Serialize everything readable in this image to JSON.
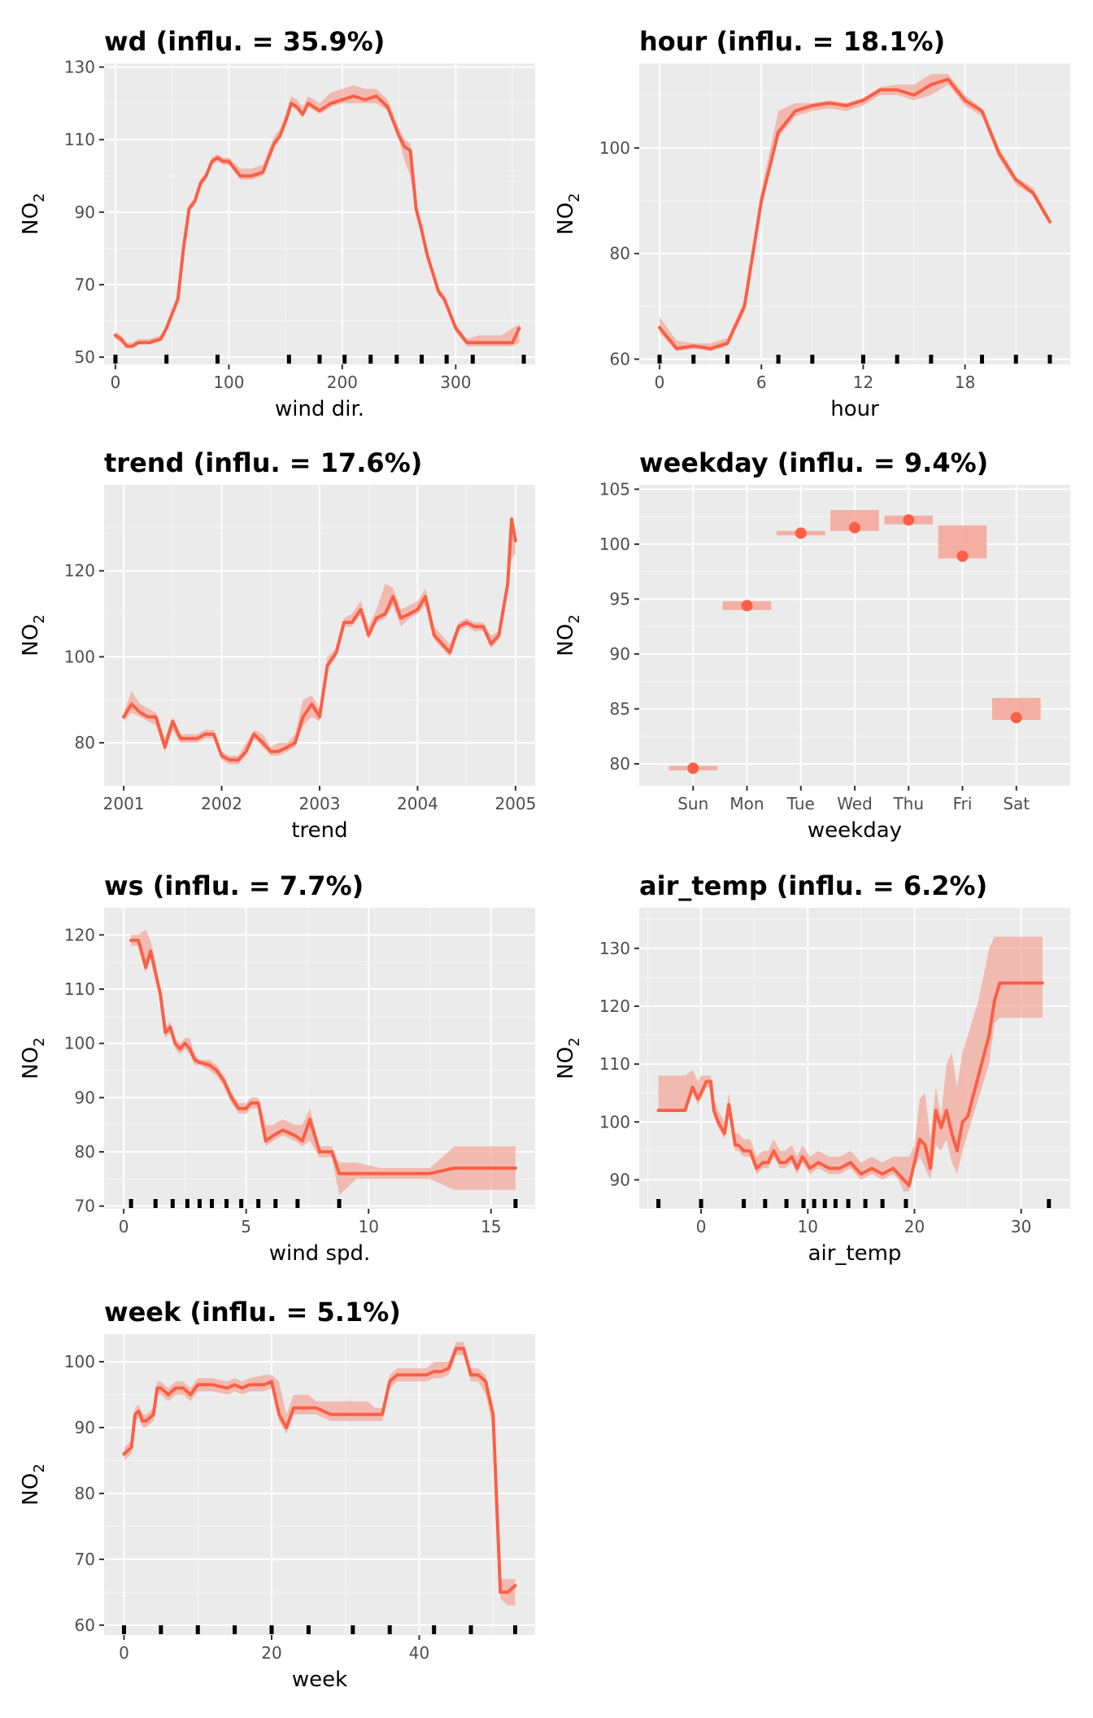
{
  "colors": {
    "line": "#fc5f45",
    "ribbon": "#f4a598",
    "panel_bg": "#ebebeb",
    "grid_major": "#ffffff",
    "rug": "#000000"
  },
  "chart_data": [
    {
      "type": "line",
      "title": "wd (influ. = 35.9%)",
      "xlabel": "wind dir.",
      "ylabel": "NO",
      "ylabel_sub": "2",
      "xlim": [
        -10,
        370
      ],
      "ylim": [
        48,
        131
      ],
      "xticks": [
        0,
        100,
        200,
        300
      ],
      "xtick_labels": [
        "0",
        "100",
        "200",
        "300"
      ],
      "yticks": [
        50,
        70,
        90,
        110,
        130
      ],
      "ytick_labels": [
        "50",
        "70",
        "90",
        "110",
        "130"
      ],
      "x": [
        0,
        5,
        10,
        15,
        20,
        30,
        40,
        45,
        50,
        55,
        60,
        65,
        70,
        75,
        80,
        85,
        90,
        95,
        100,
        110,
        120,
        130,
        140,
        145,
        150,
        155,
        160,
        165,
        170,
        180,
        190,
        200,
        210,
        220,
        230,
        240,
        250,
        255,
        260,
        265,
        270,
        275,
        280,
        285,
        290,
        300,
        310,
        320,
        340,
        350,
        356
      ],
      "y": [
        56,
        55,
        53,
        53,
        54,
        54,
        55,
        58,
        62,
        66,
        80,
        91,
        93,
        98,
        100,
        104,
        105,
        104,
        104,
        100,
        100,
        101,
        109,
        111,
        115,
        120,
        119,
        117,
        120,
        118,
        120,
        121,
        122,
        121,
        122,
        119,
        111,
        108,
        107,
        91,
        85,
        78,
        73,
        68,
        66,
        58,
        54,
        54,
        54,
        54,
        58
      ],
      "lower": [
        55,
        54,
        53,
        53,
        54,
        54,
        55,
        57,
        61,
        65,
        79,
        90,
        92,
        97,
        99,
        103,
        104,
        103,
        103,
        99,
        99,
        100,
        108,
        110,
        114,
        119,
        118,
        116,
        119,
        117,
        119,
        120,
        120,
        120,
        120,
        118,
        110,
        104,
        100,
        90,
        84,
        77,
        72,
        67,
        65,
        57,
        53,
        53,
        53,
        53,
        54
      ],
      "upper": [
        57,
        56,
        54,
        54,
        55,
        55,
        56,
        59,
        63,
        67,
        81,
        92,
        94,
        99,
        101,
        105,
        106,
        105,
        105,
        102,
        102,
        103,
        111,
        113,
        117,
        122,
        121,
        119,
        122,
        120,
        123,
        124,
        125,
        124,
        124,
        121,
        113,
        110,
        109,
        93,
        86,
        79,
        74,
        69,
        67,
        59,
        55,
        56,
        56,
        58,
        59
      ],
      "rug": [
        0,
        45,
        90,
        153,
        180,
        202,
        225,
        248,
        270,
        292,
        315,
        360
      ]
    },
    {
      "type": "line",
      "title": "hour (influ. = 18.1%)",
      "xlabel": "hour",
      "ylabel": "NO",
      "ylabel_sub": "2",
      "xlim": [
        -1.2,
        24.2
      ],
      "ylim": [
        59,
        116
      ],
      "xticks": [
        0,
        6,
        12,
        18
      ],
      "xtick_labels": [
        "0",
        "6",
        "12",
        "18"
      ],
      "yticks": [
        60,
        80,
        100
      ],
      "ytick_labels": [
        "60",
        "80",
        "100"
      ],
      "x": [
        0,
        1,
        2,
        3,
        4,
        5,
        6,
        7,
        8,
        9,
        10,
        11,
        12,
        13,
        14,
        15,
        16,
        17,
        18,
        19,
        20,
        21,
        22,
        23
      ],
      "y": [
        66,
        62,
        62.5,
        62,
        63,
        70,
        90,
        103,
        107,
        108,
        108.5,
        108,
        109,
        111,
        111,
        110,
        112,
        113,
        109,
        107,
        99,
        94,
        91.5,
        86
      ],
      "lower": [
        65,
        61.5,
        62,
        61.5,
        62.5,
        69,
        89,
        102,
        106,
        107,
        107.5,
        107,
        108,
        110,
        110,
        109,
        110,
        112,
        108,
        106,
        98,
        93,
        91,
        85.5
      ],
      "upper": [
        68,
        63.5,
        63,
        63,
        64,
        71,
        92,
        107,
        108.5,
        108.5,
        109,
        108.5,
        109.5,
        111.5,
        112,
        112,
        114,
        114,
        110,
        107.5,
        100,
        94.5,
        92.5,
        86.5
      ],
      "rug": [
        0,
        2,
        4,
        7,
        9,
        12,
        14,
        16,
        19,
        21,
        23
      ]
    },
    {
      "type": "line",
      "title": "trend (influ. = 17.6%)",
      "xlabel": "trend",
      "ylabel": "NO",
      "ylabel_sub": "2",
      "xlim": [
        2000.8,
        2005.2
      ],
      "ylim": [
        70,
        140
      ],
      "xticks": [
        2001,
        2002,
        2003,
        2004,
        2005
      ],
      "xtick_labels": [
        "2001",
        "2002",
        "2003",
        "2004",
        "2005"
      ],
      "yticks": [
        80,
        100,
        120
      ],
      "ytick_labels": [
        "80",
        "100",
        "120"
      ],
      "x": [
        2001.0,
        2001.08,
        2001.17,
        2001.25,
        2001.33,
        2001.42,
        2001.5,
        2001.58,
        2001.67,
        2001.75,
        2001.83,
        2001.92,
        2002.0,
        2002.08,
        2002.17,
        2002.25,
        2002.33,
        2002.42,
        2002.5,
        2002.58,
        2002.67,
        2002.75,
        2002.83,
        2002.92,
        2003.0,
        2003.08,
        2003.17,
        2003.25,
        2003.33,
        2003.42,
        2003.5,
        2003.58,
        2003.67,
        2003.75,
        2003.83,
        2003.92,
        2004.0,
        2004.08,
        2004.17,
        2004.25,
        2004.33,
        2004.42,
        2004.5,
        2004.58,
        2004.67,
        2004.75,
        2004.83,
        2004.92,
        2004.96,
        2005.0
      ],
      "y": [
        86,
        89,
        87,
        86,
        86,
        79,
        85,
        81,
        81,
        81,
        82,
        82,
        77,
        76,
        76,
        78,
        82,
        80,
        78,
        78,
        79,
        80,
        86,
        89,
        86,
        98,
        101,
        108,
        108,
        111,
        105,
        109,
        110,
        114,
        109,
        110,
        111,
        114,
        105,
        103,
        101,
        107,
        108,
        107,
        107,
        103,
        105,
        117,
        132,
        127
      ],
      "lower": [
        85,
        87,
        86,
        85,
        84,
        78,
        83,
        80,
        80,
        80,
        81,
        81,
        76,
        75,
        75,
        77,
        81,
        79,
        77,
        77,
        78,
        79,
        84,
        86,
        85,
        97,
        100,
        107,
        107,
        110,
        104,
        108,
        109,
        112,
        107,
        109,
        110,
        112,
        104,
        102,
        100,
        106,
        107,
        106,
        106,
        102,
        104,
        115,
        123,
        124
      ],
      "upper": [
        87,
        92,
        89,
        88,
        87,
        81,
        86,
        82,
        82,
        82,
        83,
        83,
        78,
        77,
        77,
        80,
        83,
        82,
        79,
        80,
        80,
        82,
        90,
        91,
        88,
        100,
        102,
        109,
        110,
        113,
        107,
        111,
        117,
        116,
        111,
        112,
        113,
        116,
        107,
        105,
        103,
        108,
        109,
        108,
        108,
        105,
        106,
        119,
        133,
        129
      ],
      "rug": []
    },
    {
      "type": "point",
      "title": "weekday (influ. = 9.4%)",
      "xlabel": "weekday",
      "ylabel": "NO",
      "ylabel_sub": "2",
      "ylim": [
        78,
        105.4
      ],
      "categories": [
        "Sun",
        "Mon",
        "Tue",
        "Wed",
        "Thu",
        "Fri",
        "Sat"
      ],
      "yticks": [
        80,
        85,
        90,
        95,
        100,
        105
      ],
      "ytick_labels": [
        "80",
        "85",
        "90",
        "95",
        "100",
        "105"
      ],
      "values": [
        79.6,
        94.4,
        101.0,
        101.5,
        102.2,
        98.9,
        84.2
      ],
      "lower": [
        79.4,
        94.0,
        100.8,
        101.2,
        101.8,
        98.7,
        84.0
      ],
      "upper": [
        79.8,
        94.8,
        101.2,
        103.1,
        102.6,
        101.7,
        86.0
      ]
    },
    {
      "type": "line",
      "title": "ws (influ. = 7.7%)",
      "xlabel": "wind spd.",
      "ylabel": "NO",
      "ylabel_sub": "2",
      "xlim": [
        -0.8,
        16.8
      ],
      "ylim": [
        69.5,
        125
      ],
      "xticks": [
        0,
        5,
        10,
        15
      ],
      "xtick_labels": [
        "0",
        "5",
        "10",
        "15"
      ],
      "yticks": [
        70,
        80,
        90,
        100,
        110,
        120
      ],
      "ytick_labels": [
        "70",
        "80",
        "90",
        "100",
        "110",
        "120"
      ],
      "x": [
        0.3,
        0.6,
        0.9,
        1.1,
        1.3,
        1.5,
        1.7,
        1.9,
        2.1,
        2.3,
        2.5,
        2.7,
        2.9,
        3.1,
        3.5,
        3.8,
        4.1,
        4.4,
        4.7,
        5.0,
        5.2,
        5.5,
        5.8,
        6.1,
        6.5,
        7.0,
        7.3,
        7.6,
        8.0,
        8.5,
        8.8,
        9.5,
        10.5,
        11.5,
        12.5,
        13.5,
        14.5,
        15.5,
        16.0
      ],
      "y": [
        119,
        119,
        114,
        117,
        113,
        109,
        102,
        103,
        100,
        99,
        100,
        99,
        97,
        96.5,
        96,
        95,
        93,
        90,
        88,
        88,
        89,
        89,
        82,
        83,
        84,
        83,
        82,
        86,
        80,
        80,
        76,
        76,
        76,
        76,
        76,
        77,
        77,
        77,
        77
      ],
      "lower": [
        118,
        118,
        113,
        116,
        112,
        108,
        101,
        102,
        99,
        98,
        99,
        98,
        96,
        96,
        95,
        94,
        92,
        89,
        87,
        87,
        88,
        88,
        81,
        82,
        83,
        82,
        81,
        82,
        79,
        79,
        72,
        75,
        75,
        75,
        75,
        73,
        73,
        73,
        73
      ],
      "upper": [
        120,
        120,
        121,
        119,
        115,
        110,
        103,
        104,
        101,
        100,
        101,
        101,
        98,
        97,
        97,
        96,
        94,
        91,
        89,
        89,
        90,
        90,
        85,
        85,
        86,
        85,
        85,
        88,
        81,
        81,
        78,
        78,
        77,
        77,
        77,
        81,
        81,
        81,
        81
      ],
      "rug": [
        0.3,
        1.3,
        2.0,
        2.6,
        3.1,
        3.6,
        4.2,
        4.8,
        5.5,
        6.2,
        7.1,
        8.8,
        16.0
      ]
    },
    {
      "type": "line",
      "title": "air_temp (influ. = 6.2%)",
      "xlabel": "air_temp",
      "ylabel": "NO",
      "ylabel_sub": "2",
      "xlim": [
        -5.8,
        34.6
      ],
      "ylim": [
        85,
        137
      ],
      "xticks": [
        0,
        10,
        20,
        30
      ],
      "xtick_labels": [
        "0",
        "10",
        "20",
        "30"
      ],
      "yticks": [
        90,
        100,
        110,
        120,
        130
      ],
      "ytick_labels": [
        "90",
        "100",
        "110",
        "120",
        "130"
      ],
      "x": [
        -4.0,
        -1.5,
        -0.8,
        -0.3,
        0.0,
        0.5,
        0.9,
        1.2,
        1.6,
        2.2,
        2.6,
        3.2,
        3.5,
        4.0,
        4.6,
        5.2,
        5.8,
        6.3,
        6.8,
        7.4,
        7.9,
        8.5,
        9.0,
        9.5,
        10.2,
        11.0,
        12.0,
        13.0,
        14.0,
        15.0,
        16.0,
        17.0,
        18.0,
        18.5,
        19.0,
        19.5,
        20.0,
        20.5,
        21.0,
        21.5,
        22.0,
        22.5,
        23.0,
        23.5,
        24.0,
        24.5,
        25.0,
        26.0,
        27.0,
        27.5,
        28.0,
        29.0,
        32.0
      ],
      "y": [
        102,
        102,
        106,
        104,
        105,
        107,
        107,
        102,
        100,
        98,
        103,
        96,
        96,
        95,
        95,
        92,
        93,
        93,
        95,
        93,
        93,
        94,
        92,
        94,
        92,
        93,
        92,
        92,
        93,
        91,
        92,
        91,
        92,
        91,
        90,
        89,
        93,
        97,
        96,
        92,
        102,
        99,
        102,
        98,
        95,
        100,
        101,
        108,
        115,
        121,
        124,
        124,
        124
      ],
      "lower": [
        102,
        102,
        105,
        103,
        104,
        106,
        106,
        101,
        99,
        97,
        102,
        95,
        95,
        94,
        94,
        91,
        92,
        92,
        94,
        92,
        92,
        93,
        91,
        93,
        91,
        92,
        91,
        91,
        92,
        90,
        91,
        90,
        91,
        90,
        88,
        88,
        92,
        94,
        92,
        90,
        96,
        95,
        97,
        93,
        91,
        95,
        98,
        104,
        110,
        117,
        118,
        118,
        118
      ],
      "upper": [
        108,
        108,
        109,
        107,
        108,
        108,
        108,
        104,
        102,
        100,
        105,
        98,
        98,
        97,
        97,
        94,
        95,
        95,
        97,
        95,
        95,
        96,
        94,
        96,
        94,
        95,
        94,
        94,
        95,
        93,
        94,
        93,
        94,
        94,
        94,
        94,
        96,
        104,
        105,
        97,
        106,
        101,
        110,
        112,
        106,
        112,
        115,
        121,
        130,
        132,
        132,
        132,
        132
      ],
      "rug": [
        -4.0,
        0.0,
        4.0,
        6.0,
        8.0,
        9.6,
        10.6,
        11.6,
        12.6,
        13.8,
        15.4,
        17.0,
        19.2,
        32.6
      ]
    },
    {
      "type": "line",
      "title": "week (influ. = 5.1%)",
      "xlabel": "week",
      "ylabel": "NO",
      "ylabel_sub": "2",
      "xlim": [
        -2.7,
        55.7
      ],
      "ylim": [
        58.5,
        104.2
      ],
      "xticks": [
        0,
        20,
        40
      ],
      "xtick_labels": [
        "0",
        "20",
        "40"
      ],
      "yticks": [
        60,
        70,
        80,
        90,
        100
      ],
      "ytick_labels": [
        "60",
        "70",
        "80",
        "90",
        "100"
      ],
      "x": [
        0,
        1,
        1.5,
        2,
        2.5,
        3,
        4,
        4.5,
        5,
        6,
        7,
        8,
        9,
        10,
        12,
        14,
        15,
        16,
        17,
        19,
        20,
        21,
        22,
        23,
        24,
        25,
        26,
        27,
        28,
        29,
        30,
        31,
        32,
        33,
        34,
        35,
        36,
        37,
        38,
        39,
        40,
        41,
        42,
        43,
        44,
        45,
        46,
        47,
        48,
        49,
        50,
        51,
        52,
        53
      ],
      "y": [
        86,
        87,
        92,
        92.5,
        91,
        91,
        92,
        96,
        96,
        95,
        96,
        96,
        95,
        96.5,
        96.5,
        96,
        96.5,
        96,
        96.5,
        96.5,
        97,
        92,
        90,
        93,
        93,
        93,
        93,
        92.5,
        92,
        92,
        92,
        92,
        92,
        92,
        92,
        92,
        97,
        98,
        98,
        98,
        98,
        98,
        98.5,
        98.5,
        99,
        102,
        102,
        98,
        98,
        97,
        92,
        65,
        65,
        66
      ],
      "lower": [
        85,
        86,
        91,
        91.5,
        90,
        90,
        91,
        95,
        95,
        94,
        95,
        95,
        94,
        95.5,
        95.5,
        95,
        95.5,
        95,
        95.5,
        95.5,
        96,
        91,
        89,
        92,
        92,
        92,
        92,
        91.5,
        91,
        91,
        91,
        91,
        91,
        91,
        91,
        91,
        96,
        97,
        97,
        97,
        97,
        97,
        97.5,
        97.5,
        98,
        101,
        101,
        97,
        97,
        95,
        90,
        64,
        63,
        63
      ],
      "upper": [
        87,
        88,
        93,
        93.5,
        92,
        92,
        93,
        97,
        97,
        96,
        97,
        97,
        96,
        97.5,
        97.5,
        97,
        97.5,
        97,
        97.5,
        98,
        98,
        97,
        92,
        95,
        95,
        95,
        94,
        94,
        94,
        94,
        94,
        94,
        94,
        94,
        93,
        93,
        98,
        99,
        99,
        99,
        99,
        99,
        100,
        100,
        100,
        103,
        103,
        99,
        99,
        98,
        93,
        67,
        67,
        67
      ],
      "rug": [
        0,
        5,
        10,
        15,
        20,
        25,
        31,
        36,
        42,
        47,
        53
      ]
    }
  ]
}
